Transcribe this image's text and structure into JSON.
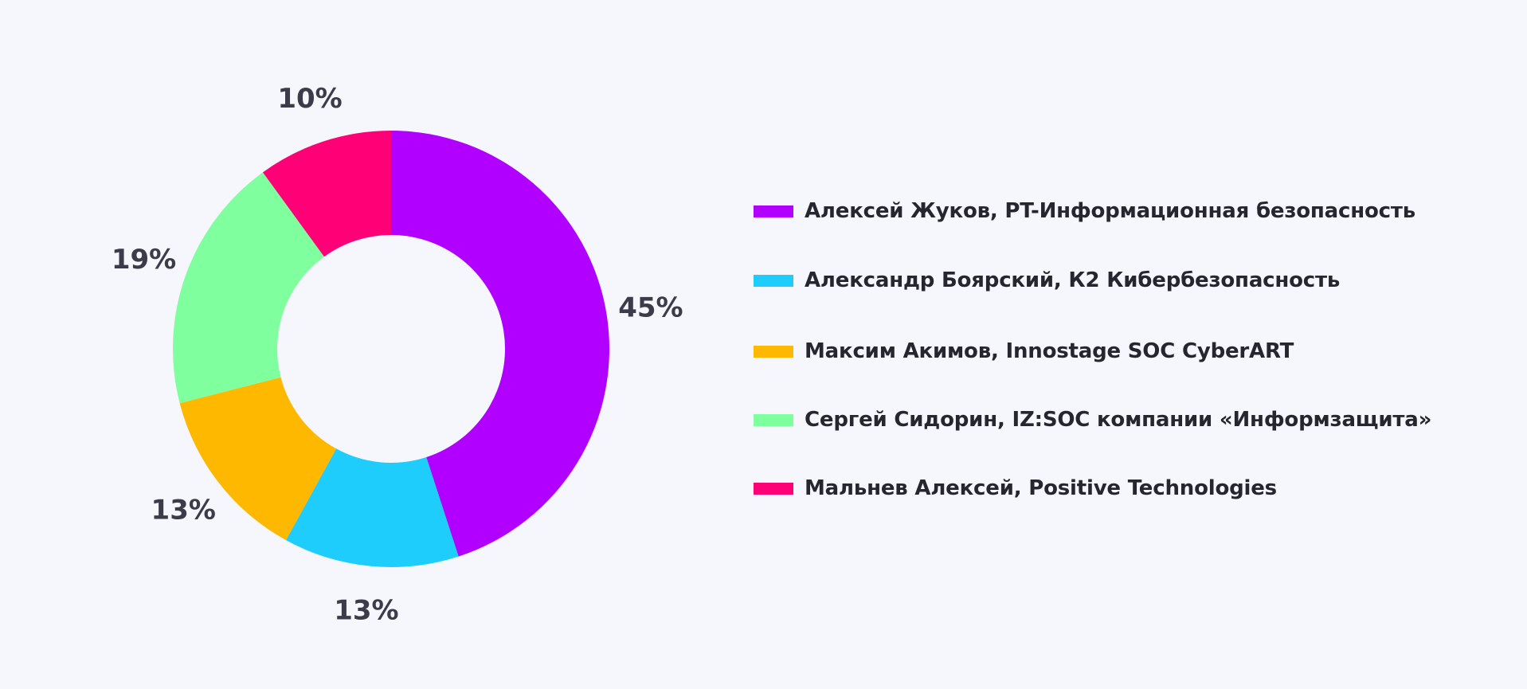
{
  "chart_data": {
    "type": "pie",
    "title": "",
    "donut": true,
    "legend_position": "right",
    "series": [
      {
        "name": "Алексей Жуков, PT-Информационная безопасность",
        "value": 45,
        "label": "45%",
        "color": "#b100ff"
      },
      {
        "name": "Александр Боярский, К2 Кибербезопасность",
        "value": 13,
        "label": "13%",
        "color": "#1ecdfc"
      },
      {
        "name": "Максим Акимов, Innostage SOC CyberART",
        "value": 13,
        "label": "13%",
        "color": "#ffb800"
      },
      {
        "name": "Сергей Сидорин, IZ:SOC компании «Информзащита»",
        "value": 19,
        "label": "19%",
        "color": "#80ff9e"
      },
      {
        "name": "Мальнев Алексей, Positive Technologies",
        "value": 10,
        "label": "10%",
        "color": "#ff0077"
      }
    ]
  }
}
